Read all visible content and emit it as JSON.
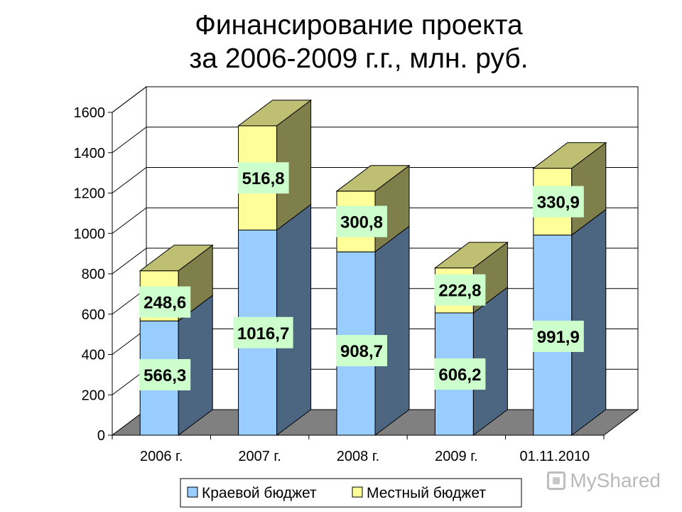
{
  "chart_data": {
    "type": "bar",
    "stacked": true,
    "three_d": true,
    "title_lines": [
      "Финансирование проекта",
      "за 2006-2009 г.г., млн. руб."
    ],
    "categories": [
      "2006 г.",
      "2007 г.",
      "2008 г.",
      "2009 г.",
      "01.11.2010"
    ],
    "series": [
      {
        "name": "Краевой бюджет",
        "values": [
          566.3,
          1016.7,
          908.7,
          606.2,
          991.9
        ],
        "labels": [
          "566,3",
          "1016,7",
          "908,7",
          "606,2",
          "991,9"
        ],
        "color": "#99ccff",
        "side_color": "#4c6580",
        "top_color": "#99ccff"
      },
      {
        "name": "Местный бюджет",
        "values": [
          248.6,
          516.8,
          300.8,
          222.8,
          330.9
        ],
        "labels": [
          "248,6",
          "516,8",
          "300,8",
          "222,8",
          "330,9"
        ],
        "color": "#ffff99",
        "side_color": "#7f7f4c",
        "top_color": "#bfbf73"
      }
    ],
    "yticks": [
      0,
      200,
      400,
      600,
      800,
      1000,
      1200,
      1400,
      1600
    ],
    "ylim": [
      0,
      1600
    ],
    "grid": true,
    "legend_position": "bottom",
    "data_label_bg": "#ccffcc"
  },
  "watermark": "MyShared"
}
